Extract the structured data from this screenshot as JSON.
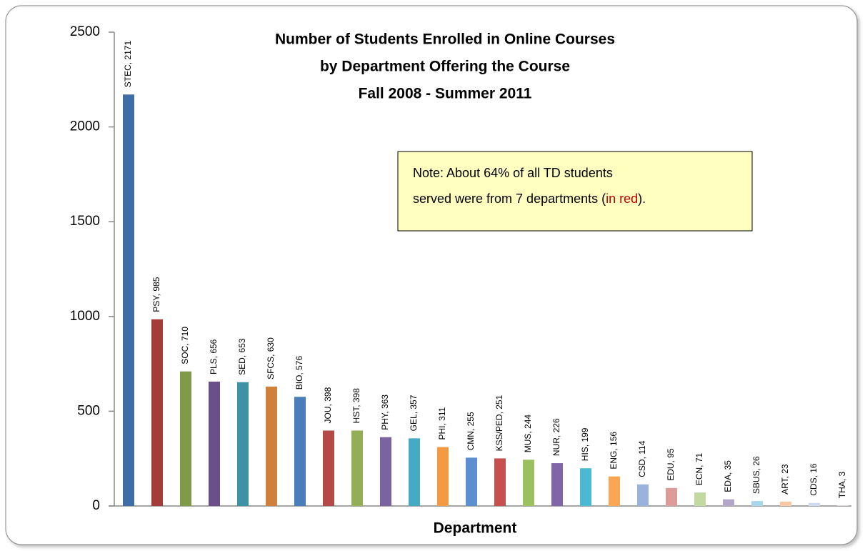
{
  "chart_data": {
    "type": "bar",
    "title": [
      "Number of Students Enrolled in Online Courses",
      "by Department Offering the Course",
      "Fall 2008 - Summer 2011"
    ],
    "x_label": "Department",
    "categories": [
      "STEC",
      "PSY",
      "SOC",
      "PLS",
      "SED",
      "SFCS",
      "BIO",
      "JOU",
      "HST",
      "PHY",
      "GEL",
      "PHI",
      "CMN",
      "KSS/PED",
      "MUS",
      "NUR",
      "HIS",
      "ENG",
      "CSD",
      "EDU",
      "ECN",
      "EDA",
      "SBUS",
      "ART",
      "CDS",
      "THA"
    ],
    "values": [
      2171,
      985,
      710,
      656,
      653,
      630,
      576,
      398,
      398,
      363,
      357,
      311,
      255,
      251,
      244,
      226,
      199,
      156,
      114,
      95,
      71,
      35,
      26,
      23,
      16,
      3
    ],
    "value_labels": [
      "STEC, 2171",
      "PSY, 985",
      "SOC, 710",
      "PLS, 656",
      "SED, 653",
      "SFCS, 630",
      "BIO, 576",
      "JOU, 398",
      "HST, 398",
      "PHY, 363",
      "GEL, 357",
      "PHI, 311",
      "CMN, 255",
      "KSS/PED, 251",
      "MUS, 244",
      "NUR, 226",
      "HIS, 199",
      "ENG, 156",
      "CSD, 114",
      "EDU, 95",
      "ECN, 71",
      "EDA, 35",
      "SBUS, 26",
      "ART, 23",
      "CDS, 16",
      "THA, 3"
    ],
    "colors": [
      "#3f6da6",
      "#a33d3b",
      "#7f9a48",
      "#6a5088",
      "#3d92a6",
      "#d0803d",
      "#4a7ebb",
      "#b44a47",
      "#93ae57",
      "#7b63a0",
      "#46aac4",
      "#f39a45",
      "#5b8fd0",
      "#c5504d",
      "#9bc15e",
      "#8065a8",
      "#4bb8d4",
      "#f9a655",
      "#9ab3dd",
      "#dd9b9a",
      "#c2d9a0",
      "#b3a6c9",
      "#a6d6e7",
      "#f9c8a3",
      "#cfdbed",
      "#f0d3d3"
    ],
    "label_colors": [
      "#c00000",
      "#c00000",
      "#c00000",
      "#c00000",
      "#c00000",
      "#c00000",
      "#c00000",
      "#0000cc",
      "#0000cc",
      "#0000cc",
      "#0000cc",
      "#0000cc",
      "#0000cc",
      "#0000cc",
      "#0000cc",
      "#0000cc",
      "#0000cc",
      "#0000cc",
      "#0000cc",
      "#0000cc",
      "#0000cc",
      "#0000cc",
      "#0000cc",
      "#0000cc",
      "#0000cc",
      "#0000cc"
    ],
    "ylim": [
      0,
      2500
    ],
    "yticks": [
      0,
      500,
      1000,
      1500,
      2000,
      2500
    ],
    "annotation": {
      "line1": "Note: About 64% of all TD students",
      "line2": [
        "served were from 7 departments (",
        "in red",
        ")."
      ],
      "highlight_color": "#c00000"
    }
  }
}
